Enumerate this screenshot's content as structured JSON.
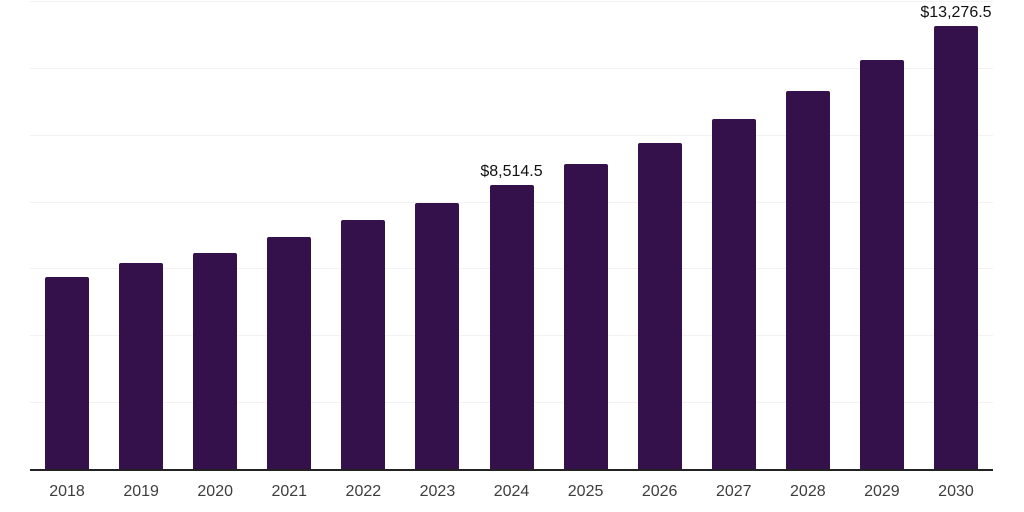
{
  "chart_data": {
    "type": "bar",
    "title": "",
    "xlabel": "",
    "ylabel": "",
    "categories": [
      "2018",
      "2019",
      "2020",
      "2021",
      "2022",
      "2023",
      "2024",
      "2025",
      "2026",
      "2027",
      "2028",
      "2029",
      "2030"
    ],
    "values": [
      5770,
      6185,
      6500,
      6970,
      7480,
      7990,
      8514.5,
      9150,
      9780,
      10495,
      11330,
      12260,
      13276.5
    ],
    "data_labels": [
      {
        "index": 6,
        "text": "$8,514.5"
      },
      {
        "index": 12,
        "text": "$13,276.5"
      }
    ],
    "ylim": [
      0,
      14000
    ],
    "gridline_step": 2000,
    "grid": true,
    "legend": false,
    "y_axis_labels_visible": false,
    "colors": {
      "bar": "#35114C",
      "gridline": "#F2F2F2",
      "axis_line": "#222222",
      "tick_label": "#3D3D3D",
      "data_label": "#111111",
      "background": "#FFFFFF"
    }
  }
}
